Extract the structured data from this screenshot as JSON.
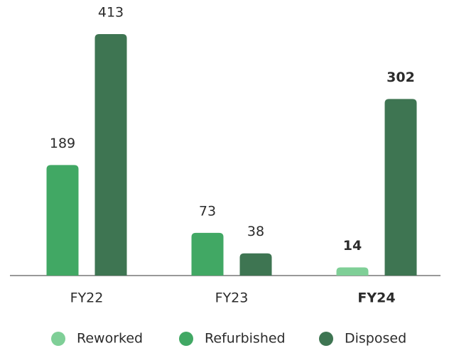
{
  "chart_data": {
    "type": "bar",
    "categories": [
      "FY22",
      "FY23",
      "FY24"
    ],
    "series": [
      {
        "name": "Reworked",
        "color": "#7fcf97",
        "values": [
          null,
          null,
          14
        ]
      },
      {
        "name": "Refurbished",
        "color": "#41a864",
        "values": [
          189,
          73,
          null
        ]
      },
      {
        "name": "Disposed",
        "color": "#3e7552",
        "values": [
          413,
          38,
          302
        ]
      }
    ],
    "highlight_index": 2,
    "legend": "bottom"
  }
}
